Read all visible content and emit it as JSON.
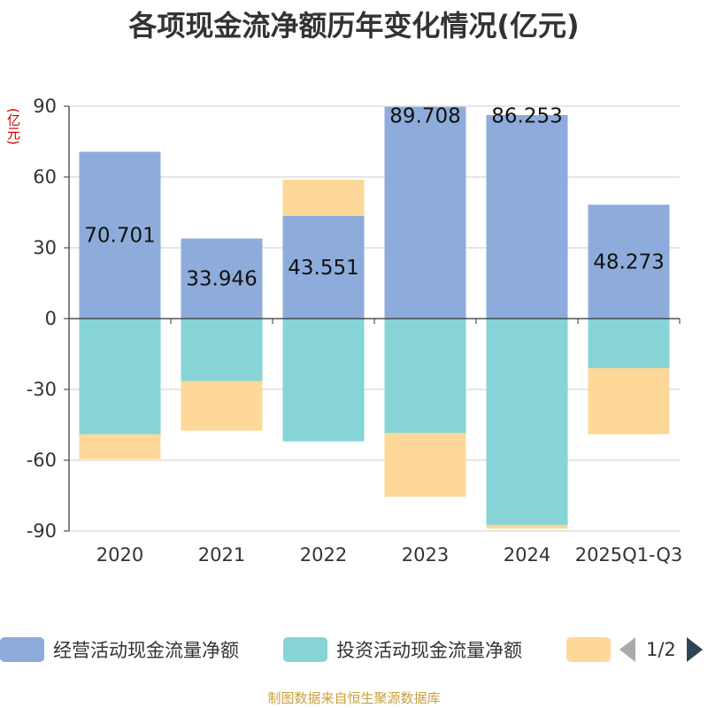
{
  "chart_data": {
    "type": "bar",
    "stacked": true,
    "title": "各项现金流净额历年变化情况(亿元)",
    "ylabel": "(亿元)",
    "ylim": [
      -90,
      90
    ],
    "yticks": [
      90,
      60,
      30,
      0,
      -30,
      -60,
      -90
    ],
    "categories": [
      "2020",
      "2021",
      "2022",
      "2023",
      "2024",
      "2025Q1-Q3"
    ],
    "series": [
      {
        "name": "经营活动现金流量净额",
        "color": "#8eacdb",
        "values": [
          70.701,
          33.946,
          43.551,
          89.708,
          86.253,
          48.273
        ],
        "labels": [
          "70.701",
          "33.946",
          "43.551",
          "89.708",
          "86.253",
          "48.273"
        ]
      },
      {
        "name": "投资活动现金流量净额",
        "color": "#86d4d6",
        "values": [
          -49,
          -26.5,
          -52,
          -48.5,
          -87.5,
          -21
        ]
      },
      {
        "name": "",
        "color": "#fdd899",
        "values": [
          -10.5,
          -21,
          15.3,
          -27,
          -1.5,
          -28
        ]
      }
    ]
  },
  "legend": {
    "items": [
      {
        "label": "经营活动现金流量净额",
        "color": "#8eacdb"
      },
      {
        "label": "投资活动现金流量净额",
        "color": "#86d4d6"
      },
      {
        "label": "",
        "color": "#fdd899"
      }
    ],
    "page": "1/2"
  },
  "source": "制图数据来自恒生聚源数据库"
}
